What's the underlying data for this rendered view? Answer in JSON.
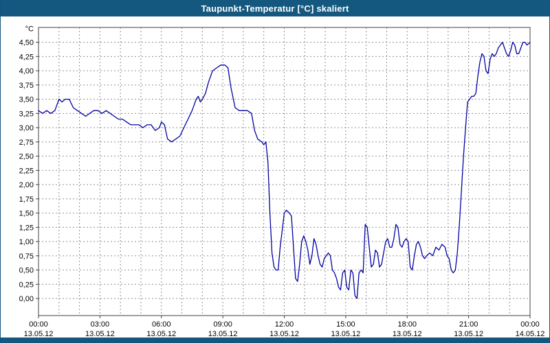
{
  "window": {
    "title": "Taupunkt-Temperatur [°C] skaliert"
  },
  "colors": {
    "title_bar": "#14587f",
    "line": "#0000a0",
    "grid": "#909090",
    "plot_border": "#404040",
    "axis_text": "#000000",
    "background": "#ffffff"
  },
  "chart_data": {
    "type": "line",
    "title": "Taupunkt-Temperatur [°C] skaliert",
    "ylabel": "°C",
    "ylim": [
      0,
      4.5
    ],
    "ytick_step": 0.25,
    "ytick_values": [
      0,
      0.25,
      0.5,
      0.75,
      1.0,
      1.25,
      1.5,
      1.75,
      2.0,
      2.25,
      2.5,
      2.75,
      3.0,
      3.25,
      3.5,
      3.75,
      4.0,
      4.25,
      4.5
    ],
    "ytick_labels": [
      "0,00",
      "0,25",
      "0,50",
      "0,75",
      "1,00",
      "1,25",
      "1,50",
      "1,75",
      "2,00",
      "2,25",
      "2,50",
      "2,75",
      "3,00",
      "3,25",
      "3,50",
      "3,75",
      "4,00",
      "4,25",
      "4,50"
    ],
    "x_hours_range": [
      0,
      24
    ],
    "minor_x_grid_every_hours": 1,
    "grid": true,
    "legend": "none",
    "xticks": [
      {
        "hour": 0,
        "time": "00:00",
        "date": "13.05.12"
      },
      {
        "hour": 3,
        "time": "03:00",
        "date": "13.05.12"
      },
      {
        "hour": 6,
        "time": "06:00",
        "date": "13.05.12"
      },
      {
        "hour": 9,
        "time": "09:00",
        "date": "13.05.12"
      },
      {
        "hour": 12,
        "time": "12:00",
        "date": "13.05.12"
      },
      {
        "hour": 15,
        "time": "15:00",
        "date": "13.05.12"
      },
      {
        "hour": 18,
        "time": "18:00",
        "date": "13.05.12"
      },
      {
        "hour": 21,
        "time": "21:00",
        "date": "13.05.12"
      },
      {
        "hour": 24,
        "time": "00:00",
        "date": "14.05.12"
      }
    ],
    "series": [
      {
        "name": "Taupunkt-Temperatur",
        "points": [
          [
            0,
            3.3
          ],
          [
            0.2,
            3.25
          ],
          [
            0.4,
            3.3
          ],
          [
            0.6,
            3.25
          ],
          [
            0.8,
            3.3
          ],
          [
            1,
            3.5
          ],
          [
            1.15,
            3.45
          ],
          [
            1.3,
            3.5
          ],
          [
            1.5,
            3.5
          ],
          [
            1.7,
            3.35
          ],
          [
            1.9,
            3.3
          ],
          [
            2.1,
            3.25
          ],
          [
            2.3,
            3.2
          ],
          [
            2.5,
            3.25
          ],
          [
            2.7,
            3.3
          ],
          [
            2.9,
            3.3
          ],
          [
            3.1,
            3.25
          ],
          [
            3.3,
            3.3
          ],
          [
            3.5,
            3.25
          ],
          [
            3.7,
            3.2
          ],
          [
            3.9,
            3.15
          ],
          [
            4.1,
            3.15
          ],
          [
            4.3,
            3.1
          ],
          [
            4.5,
            3.05
          ],
          [
            4.7,
            3.05
          ],
          [
            4.9,
            3.05
          ],
          [
            5.1,
            3.0
          ],
          [
            5.3,
            3.05
          ],
          [
            5.5,
            3.05
          ],
          [
            5.7,
            2.95
          ],
          [
            5.9,
            3.0
          ],
          [
            6.0,
            3.1
          ],
          [
            6.15,
            3.05
          ],
          [
            6.3,
            2.8
          ],
          [
            6.5,
            2.75
          ],
          [
            6.7,
            2.8
          ],
          [
            6.9,
            2.85
          ],
          [
            7.1,
            3.0
          ],
          [
            7.3,
            3.15
          ],
          [
            7.5,
            3.3
          ],
          [
            7.7,
            3.5
          ],
          [
            7.8,
            3.55
          ],
          [
            7.9,
            3.45
          ],
          [
            8.0,
            3.5
          ],
          [
            8.15,
            3.6
          ],
          [
            8.3,
            3.8
          ],
          [
            8.5,
            4.0
          ],
          [
            8.7,
            4.05
          ],
          [
            8.9,
            4.1
          ],
          [
            9.1,
            4.1
          ],
          [
            9.25,
            4.05
          ],
          [
            9.4,
            3.7
          ],
          [
            9.6,
            3.35
          ],
          [
            9.8,
            3.3
          ],
          [
            10,
            3.3
          ],
          [
            10.2,
            3.3
          ],
          [
            10.4,
            3.25
          ],
          [
            10.55,
            2.95
          ],
          [
            10.7,
            2.8
          ],
          [
            10.9,
            2.75
          ],
          [
            11,
            2.7
          ],
          [
            11.1,
            2.75
          ],
          [
            11.2,
            2.4
          ],
          [
            11.3,
            1.5
          ],
          [
            11.4,
            0.8
          ],
          [
            11.5,
            0.55
          ],
          [
            11.6,
            0.5
          ],
          [
            11.7,
            0.5
          ],
          [
            11.8,
            0.9
          ],
          [
            11.9,
            1.2
          ],
          [
            12,
            1.5
          ],
          [
            12.1,
            1.55
          ],
          [
            12.25,
            1.5
          ],
          [
            12.35,
            1.45
          ],
          [
            12.45,
            0.9
          ],
          [
            12.55,
            0.35
          ],
          [
            12.65,
            0.3
          ],
          [
            12.75,
            0.6
          ],
          [
            12.85,
            1.0
          ],
          [
            12.95,
            1.1
          ],
          [
            13.05,
            1.0
          ],
          [
            13.15,
            0.85
          ],
          [
            13.25,
            0.6
          ],
          [
            13.35,
            0.75
          ],
          [
            13.45,
            1.05
          ],
          [
            13.55,
            0.95
          ],
          [
            13.65,
            0.75
          ],
          [
            13.75,
            0.6
          ],
          [
            13.85,
            0.55
          ],
          [
            13.95,
            0.7
          ],
          [
            14.05,
            0.75
          ],
          [
            14.15,
            0.8
          ],
          [
            14.25,
            0.75
          ],
          [
            14.35,
            0.5
          ],
          [
            14.45,
            0.45
          ],
          [
            14.55,
            0.35
          ],
          [
            14.65,
            0.2
          ],
          [
            14.75,
            0.15
          ],
          [
            14.85,
            0.45
          ],
          [
            14.95,
            0.5
          ],
          [
            15.05,
            0.2
          ],
          [
            15.15,
            0.15
          ],
          [
            15.25,
            0.5
          ],
          [
            15.35,
            0.45
          ],
          [
            15.45,
            0.05
          ],
          [
            15.55,
            0.0
          ],
          [
            15.65,
            0.45
          ],
          [
            15.75,
            0.5
          ],
          [
            15.85,
            0.45
          ],
          [
            15.95,
            1.3
          ],
          [
            16.05,
            1.25
          ],
          [
            16.15,
            0.9
          ],
          [
            16.25,
            0.55
          ],
          [
            16.35,
            0.6
          ],
          [
            16.45,
            0.85
          ],
          [
            16.55,
            0.8
          ],
          [
            16.65,
            0.55
          ],
          [
            16.75,
            0.6
          ],
          [
            16.85,
            0.8
          ],
          [
            16.95,
            1.0
          ],
          [
            17.05,
            1.05
          ],
          [
            17.15,
            0.9
          ],
          [
            17.25,
            0.9
          ],
          [
            17.35,
            1.05
          ],
          [
            17.45,
            1.3
          ],
          [
            17.55,
            1.25
          ],
          [
            17.65,
            0.95
          ],
          [
            17.75,
            0.9
          ],
          [
            17.85,
            1.0
          ],
          [
            17.95,
            1.05
          ],
          [
            18.05,
            1.0
          ],
          [
            18.15,
            0.55
          ],
          [
            18.25,
            0.5
          ],
          [
            18.35,
            0.75
          ],
          [
            18.45,
            0.95
          ],
          [
            18.55,
            1.0
          ],
          [
            18.65,
            0.9
          ],
          [
            18.75,
            0.75
          ],
          [
            18.85,
            0.7
          ],
          [
            18.95,
            0.75
          ],
          [
            19.1,
            0.8
          ],
          [
            19.25,
            0.75
          ],
          [
            19.4,
            0.9
          ],
          [
            19.55,
            0.85
          ],
          [
            19.7,
            0.95
          ],
          [
            19.85,
            0.9
          ],
          [
            19.95,
            0.75
          ],
          [
            20.05,
            0.7
          ],
          [
            20.15,
            0.5
          ],
          [
            20.25,
            0.45
          ],
          [
            20.35,
            0.5
          ],
          [
            20.45,
            0.8
          ],
          [
            20.55,
            1.3
          ],
          [
            20.65,
            1.9
          ],
          [
            20.75,
            2.5
          ],
          [
            20.85,
            3.0
          ],
          [
            20.95,
            3.45
          ],
          [
            21.05,
            3.5
          ],
          [
            21.15,
            3.55
          ],
          [
            21.25,
            3.55
          ],
          [
            21.35,
            3.6
          ],
          [
            21.45,
            3.9
          ],
          [
            21.55,
            4.15
          ],
          [
            21.65,
            4.3
          ],
          [
            21.75,
            4.25
          ],
          [
            21.85,
            4.0
          ],
          [
            21.95,
            3.95
          ],
          [
            22.05,
            4.2
          ],
          [
            22.15,
            4.3
          ],
          [
            22.25,
            4.25
          ],
          [
            22.35,
            4.3
          ],
          [
            22.45,
            4.4
          ],
          [
            22.55,
            4.45
          ],
          [
            22.65,
            4.5
          ],
          [
            22.75,
            4.4
          ],
          [
            22.85,
            4.3
          ],
          [
            22.95,
            4.25
          ],
          [
            23.05,
            4.35
          ],
          [
            23.15,
            4.5
          ],
          [
            23.25,
            4.45
          ],
          [
            23.35,
            4.3
          ],
          [
            23.45,
            4.3
          ],
          [
            23.55,
            4.4
          ],
          [
            23.65,
            4.5
          ],
          [
            23.75,
            4.5
          ],
          [
            23.85,
            4.45
          ],
          [
            24,
            4.5
          ]
        ]
      }
    ]
  }
}
